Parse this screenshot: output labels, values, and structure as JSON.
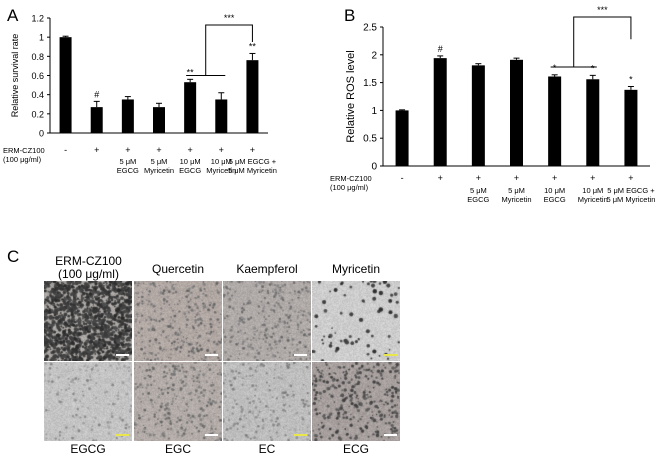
{
  "panels": {
    "a": "A",
    "b": "B",
    "c": "C"
  },
  "chart_data": [
    {
      "type": "bar",
      "panel": "A",
      "title": "",
      "ylabel": "Relative survival rate",
      "xlabel": "",
      "ylim": [
        0,
        1.2
      ],
      "yticks": [
        "0",
        "0.2",
        "0.4",
        "0.6",
        "0.8",
        "1",
        "1.2"
      ],
      "ytick_values": [
        0,
        0.2,
        0.4,
        0.6,
        0.8,
        1.0,
        1.2
      ],
      "row_label": [
        "ERM-CZ100",
        "(100 μg/ml)"
      ],
      "categories": [
        "-",
        "+",
        "+",
        "+",
        "+",
        "+",
        "+"
      ],
      "treatment_labels": [
        [],
        [],
        [
          "5 μM",
          "EGCG"
        ],
        [
          "5 μM",
          "Myricetin"
        ],
        [
          "10 μM",
          "EGCG"
        ],
        [
          "10 μM",
          "Myricetin"
        ],
        [
          "5 μM EGCG +",
          "5 μM Myricetin"
        ]
      ],
      "values": [
        1.0,
        0.27,
        0.35,
        0.27,
        0.53,
        0.35,
        0.76
      ],
      "errors": [
        0.01,
        0.06,
        0.03,
        0.04,
        0.03,
        0.07,
        0.07
      ],
      "annotations": [
        "",
        "#",
        "",
        "",
        "**",
        "",
        "**"
      ],
      "bracket_label": "***",
      "grid": false,
      "bar_color": "#000000"
    },
    {
      "type": "bar",
      "panel": "B",
      "title": "",
      "ylabel": "Relative ROS level",
      "xlabel": "",
      "ylim": [
        0,
        2.5
      ],
      "yticks": [
        "0",
        "0.5",
        "1",
        "1.5",
        "2",
        "2.5"
      ],
      "ytick_values": [
        0,
        0.5,
        1.0,
        1.5,
        2.0,
        2.5
      ],
      "row_label": [
        "ERM-CZ100",
        "(100 μg/ml)"
      ],
      "categories": [
        "-",
        "+",
        "+",
        "+",
        "+",
        "+",
        "+"
      ],
      "treatment_labels": [
        [],
        [],
        [
          "5 μM",
          "EGCG"
        ],
        [
          "5 μM",
          "Myricetin"
        ],
        [
          "10 μM",
          "EGCG"
        ],
        [
          "10 μM",
          "Myricetin"
        ],
        [
          "5 μM EGCG +",
          "5 μM Myricetin"
        ]
      ],
      "values": [
        1.0,
        1.94,
        1.81,
        1.91,
        1.61,
        1.56,
        1.37
      ],
      "errors": [
        0.01,
        0.04,
        0.03,
        0.03,
        0.03,
        0.07,
        0.06
      ],
      "annotations": [
        "",
        "#",
        "",
        "",
        "*",
        "*",
        "*"
      ],
      "bracket_label": "***",
      "grid": false,
      "bar_color": "#000000"
    }
  ],
  "micrographs": {
    "top_labels": [
      [
        "ERM-CZ100",
        "(100 μg/ml)"
      ],
      [
        "Quercetin"
      ],
      [
        "Kaempferol"
      ],
      [
        "Myricetin"
      ]
    ],
    "bottom_labels": [
      "EGCG",
      "EGC",
      "EC",
      "ECG"
    ],
    "scale_bar_colors": [
      "#ffffff",
      "#ffffff",
      "#ffffff",
      "#e8e64a",
      "#e8e64a",
      "#ffffff",
      "#e8e64a",
      "#ffffff"
    ]
  }
}
